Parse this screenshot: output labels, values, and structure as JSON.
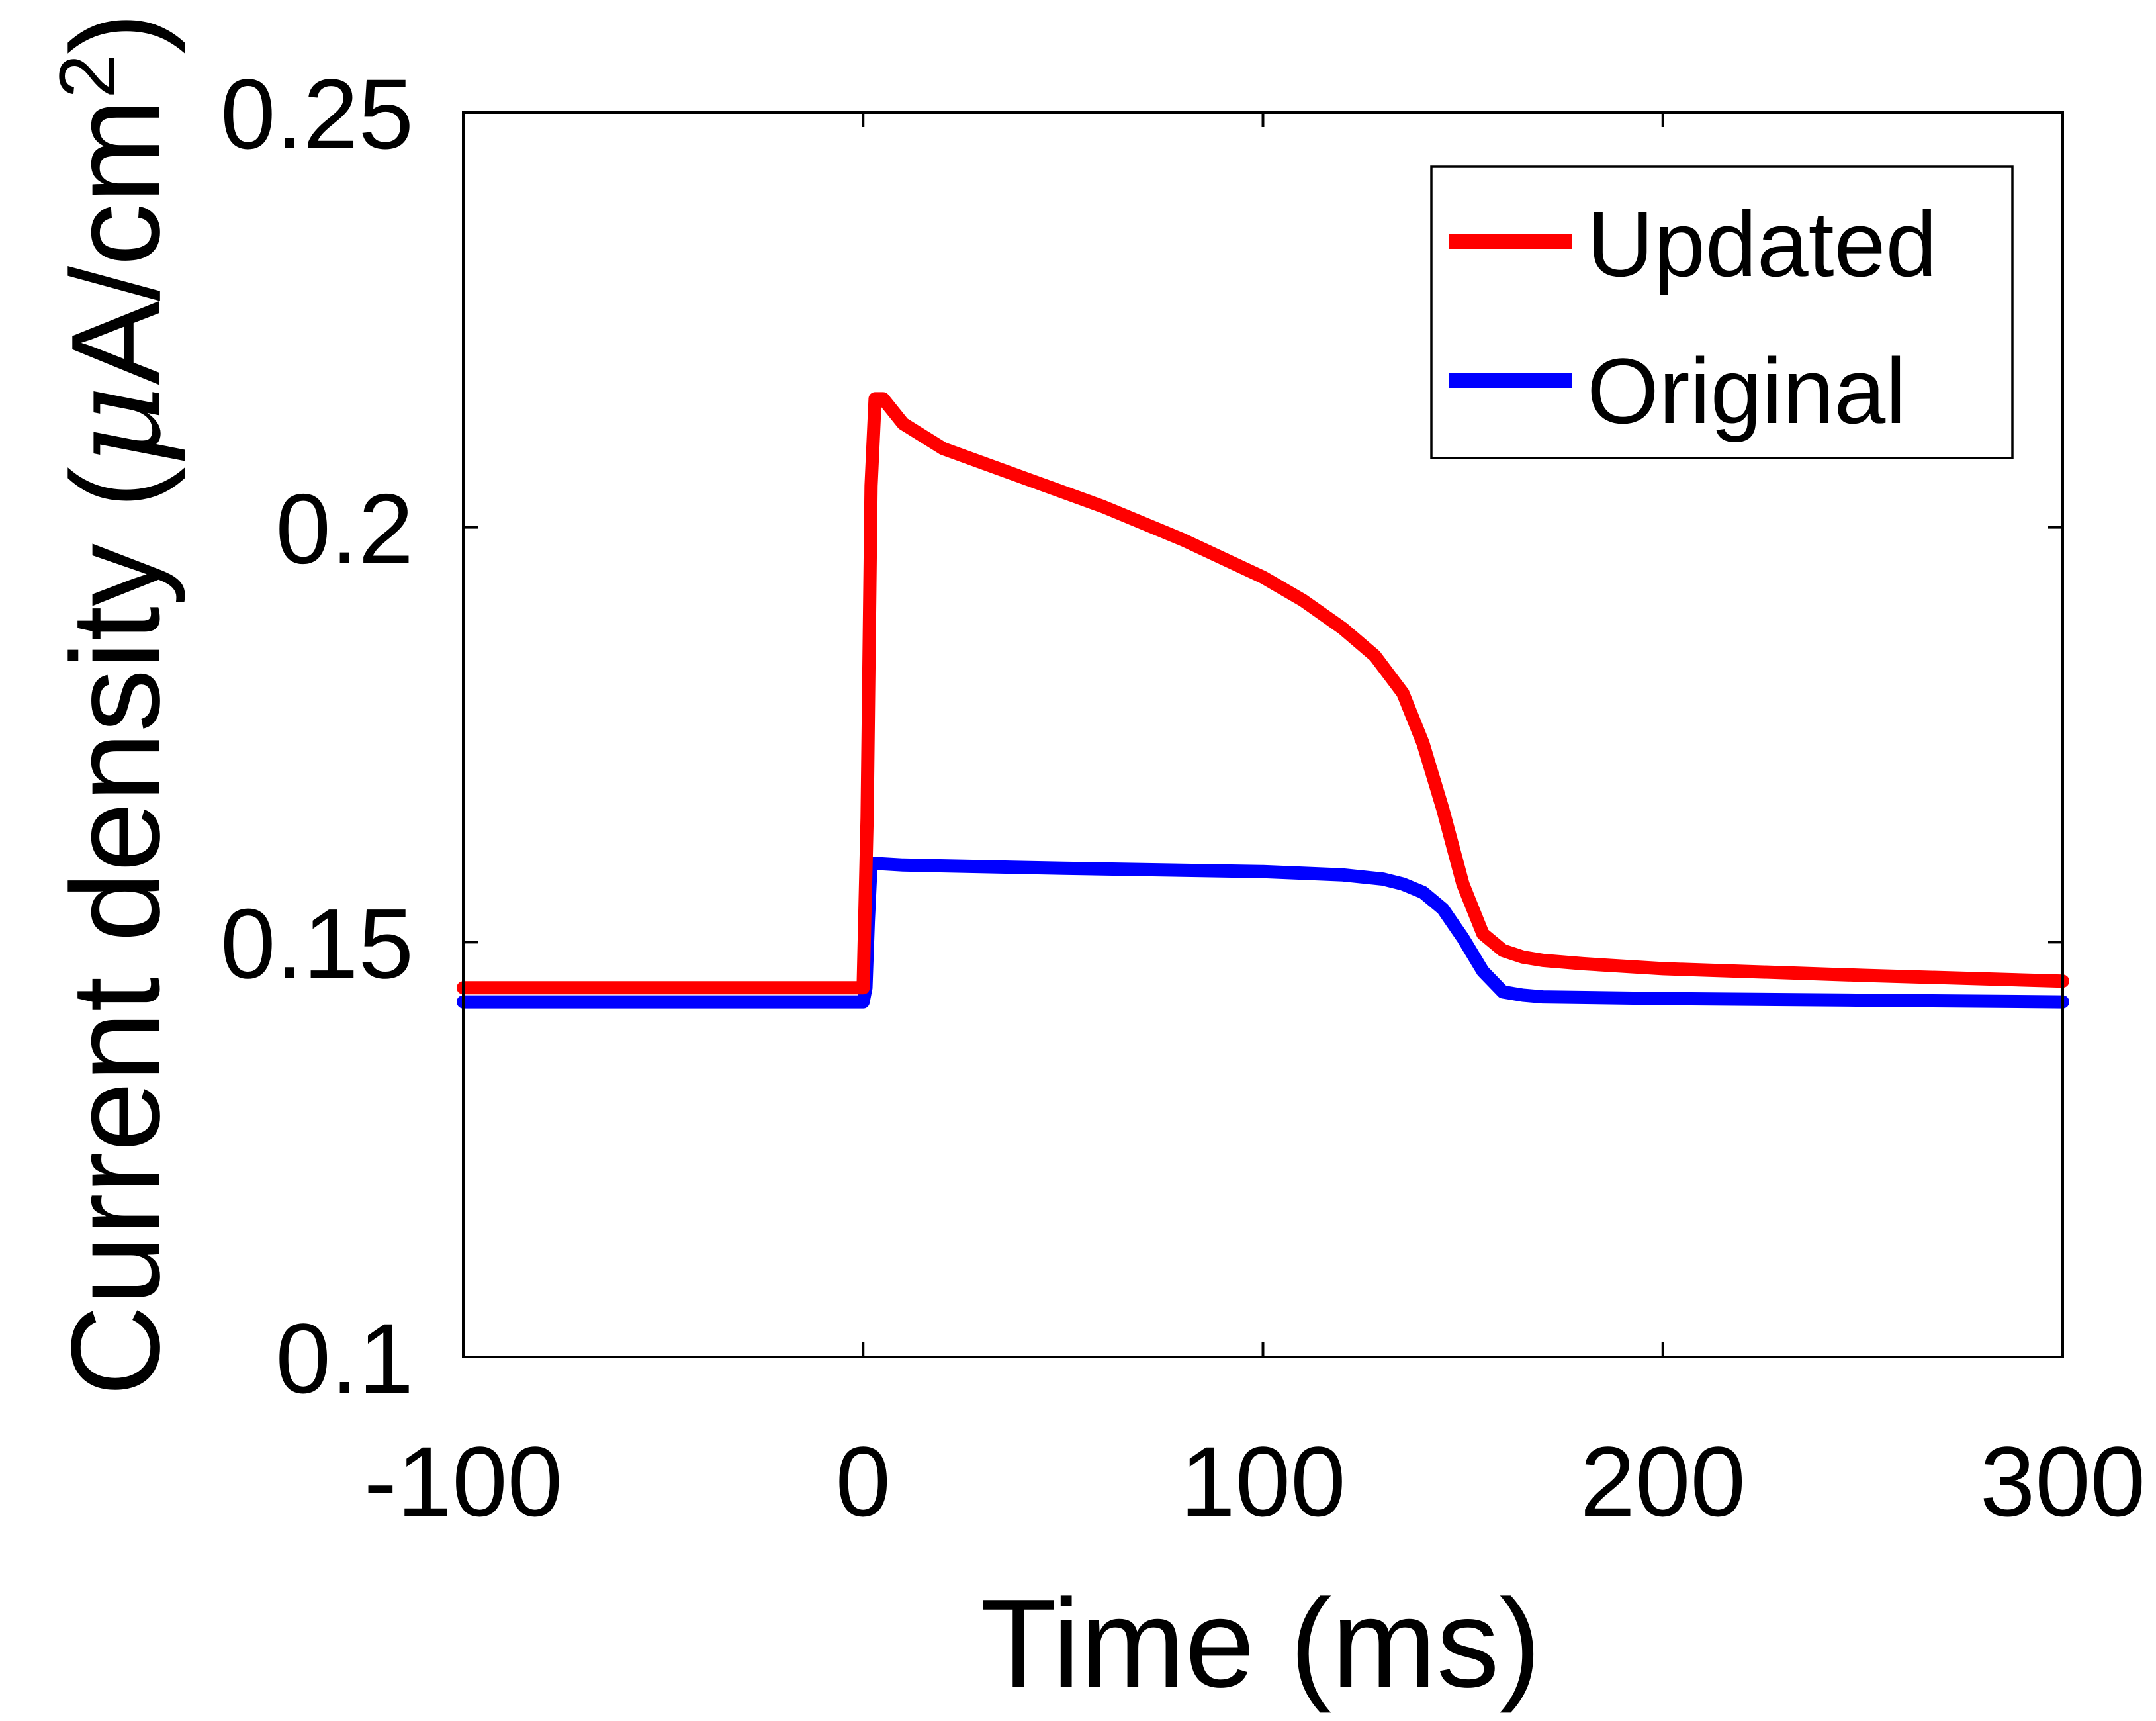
{
  "chart_data": {
    "type": "line",
    "title": "",
    "xlabel": "Time (ms)",
    "ylabel": "Current density (μA/cm²)",
    "ylabel_parts": {
      "main": "Current density (",
      "mu": "μ",
      "unit": "A/cm",
      "sup": "2",
      "close": ")"
    },
    "xlim": [
      -100,
      300
    ],
    "ylim": [
      0.1,
      0.25
    ],
    "x_ticks": [
      -100,
      0,
      100,
      200,
      300
    ],
    "x_tick_labels": [
      "-100",
      "0",
      "100",
      "200",
      "300"
    ],
    "y_ticks": [
      0.1,
      0.15,
      0.2,
      0.25
    ],
    "y_tick_labels": [
      "0.1",
      "0.15",
      "0.2",
      "0.25"
    ],
    "grid": false,
    "legend_position": "top-right",
    "series": [
      {
        "name": "Updated",
        "color": "#ff0000",
        "x": [
          -100,
          -2,
          0,
          1,
          2,
          3,
          5,
          10,
          20,
          40,
          60,
          80,
          100,
          110,
          120,
          128,
          135,
          140,
          145,
          150,
          155,
          160,
          165,
          170,
          180,
          200,
          250,
          300
        ],
        "y": [
          0.1445,
          0.1445,
          0.1445,
          0.165,
          0.205,
          0.2155,
          0.2155,
          0.2125,
          0.2095,
          0.206,
          0.2025,
          0.1985,
          0.194,
          0.1912,
          0.1878,
          0.1845,
          0.18,
          0.174,
          0.166,
          0.157,
          0.151,
          0.149,
          0.1482,
          0.1478,
          0.1474,
          0.1468,
          0.146,
          0.1453
        ]
      },
      {
        "name": "Original",
        "color": "#0000ff",
        "x": [
          -100,
          -1,
          0,
          0.7,
          1.3,
          2,
          3,
          10,
          50,
          100,
          120,
          130,
          135,
          140,
          145,
          150,
          155,
          160,
          165,
          170,
          200,
          250,
          300
        ],
        "y": [
          0.1428,
          0.1428,
          0.1428,
          0.1445,
          0.1525,
          0.1595,
          0.1595,
          0.1593,
          0.1589,
          0.1585,
          0.1581,
          0.1576,
          0.157,
          0.156,
          0.154,
          0.1505,
          0.1465,
          0.144,
          0.1436,
          0.1434,
          0.1432,
          0.143,
          0.1428
        ]
      }
    ]
  }
}
